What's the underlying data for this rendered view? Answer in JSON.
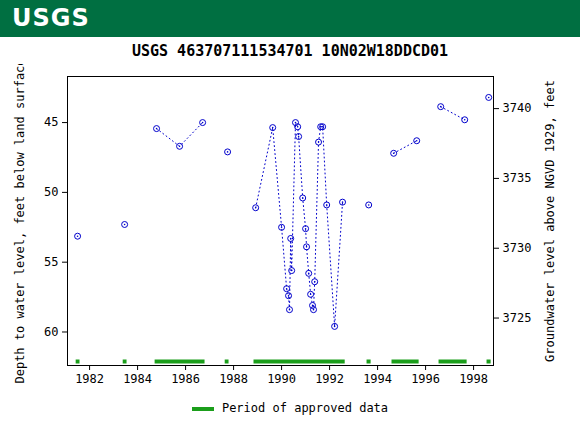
{
  "banner": "USGS",
  "chart_data": {
    "type": "line",
    "title": "USGS 463707111534701 10N02W18DDCD01",
    "y_label": "Depth to water level, feet below land surface",
    "y2_label": "Groundwater level above NGVD 1929, feet",
    "xlim": [
      1981.08,
      1998.83
    ],
    "xticks": [
      1982,
      1984,
      1986,
      1988,
      1990,
      1992,
      1994,
      1996,
      1998
    ],
    "ylim": [
      41.7,
      62.4
    ],
    "yticks": [
      45,
      50,
      55,
      60
    ],
    "y2lim": [
      3721.6,
      3742.3
    ],
    "y2ticks": [
      3725,
      3730,
      3735,
      3740
    ],
    "grid": false,
    "x": [
      1981.5,
      1981.5,
      1983.46,
      1983.46,
      1984.79,
      1985.75,
      1986.71,
      1986.71,
      1987.75,
      1987.75,
      1988.92,
      1989.63,
      1990.0,
      1990.21,
      1990.29,
      1990.33,
      1990.38,
      1990.42,
      1990.58,
      1990.67,
      1990.71,
      1990.88,
      1991.0,
      1991.04,
      1991.13,
      1991.21,
      1991.29,
      1991.33,
      1991.38,
      1991.54,
      1991.63,
      1991.71,
      1991.88,
      1992.21,
      1992.54,
      1992.54,
      1993.63,
      1993.63,
      1994.67,
      1995.63,
      1995.63,
      1996.63,
      1997.63,
      1997.63,
      1998.63
    ],
    "series": [
      {
        "name": "Depth to water level",
        "color": "#0000cc",
        "marker": "circle",
        "line_style": "dotted",
        "values": [
          53.14,
          null,
          52.3,
          null,
          45.43,
          46.7,
          45.0,
          null,
          47.1,
          null,
          51.1,
          45.36,
          52.5,
          56.9,
          57.4,
          58.4,
          53.3,
          55.6,
          45.0,
          45.3,
          46.0,
          50.4,
          52.6,
          53.9,
          55.8,
          57.3,
          58.1,
          58.4,
          56.4,
          46.4,
          45.3,
          45.3,
          50.9,
          59.6,
          50.7,
          null,
          50.9,
          null,
          47.2,
          46.3,
          null,
          43.86,
          44.8,
          null,
          43.2
        ]
      }
    ],
    "approved": {
      "name": "Period of approved data",
      "color": "#1b9e1b",
      "periods": [
        [
          1981.42,
          1981.58
        ],
        [
          1983.38,
          1983.54
        ],
        [
          1984.71,
          1986.79
        ],
        [
          1987.63,
          1987.79
        ],
        [
          1988.83,
          1992.63
        ],
        [
          1993.54,
          1993.71
        ],
        [
          1994.58,
          1995.71
        ],
        [
          1996.54,
          1997.71
        ],
        [
          1998.54,
          1998.71
        ]
      ]
    }
  }
}
